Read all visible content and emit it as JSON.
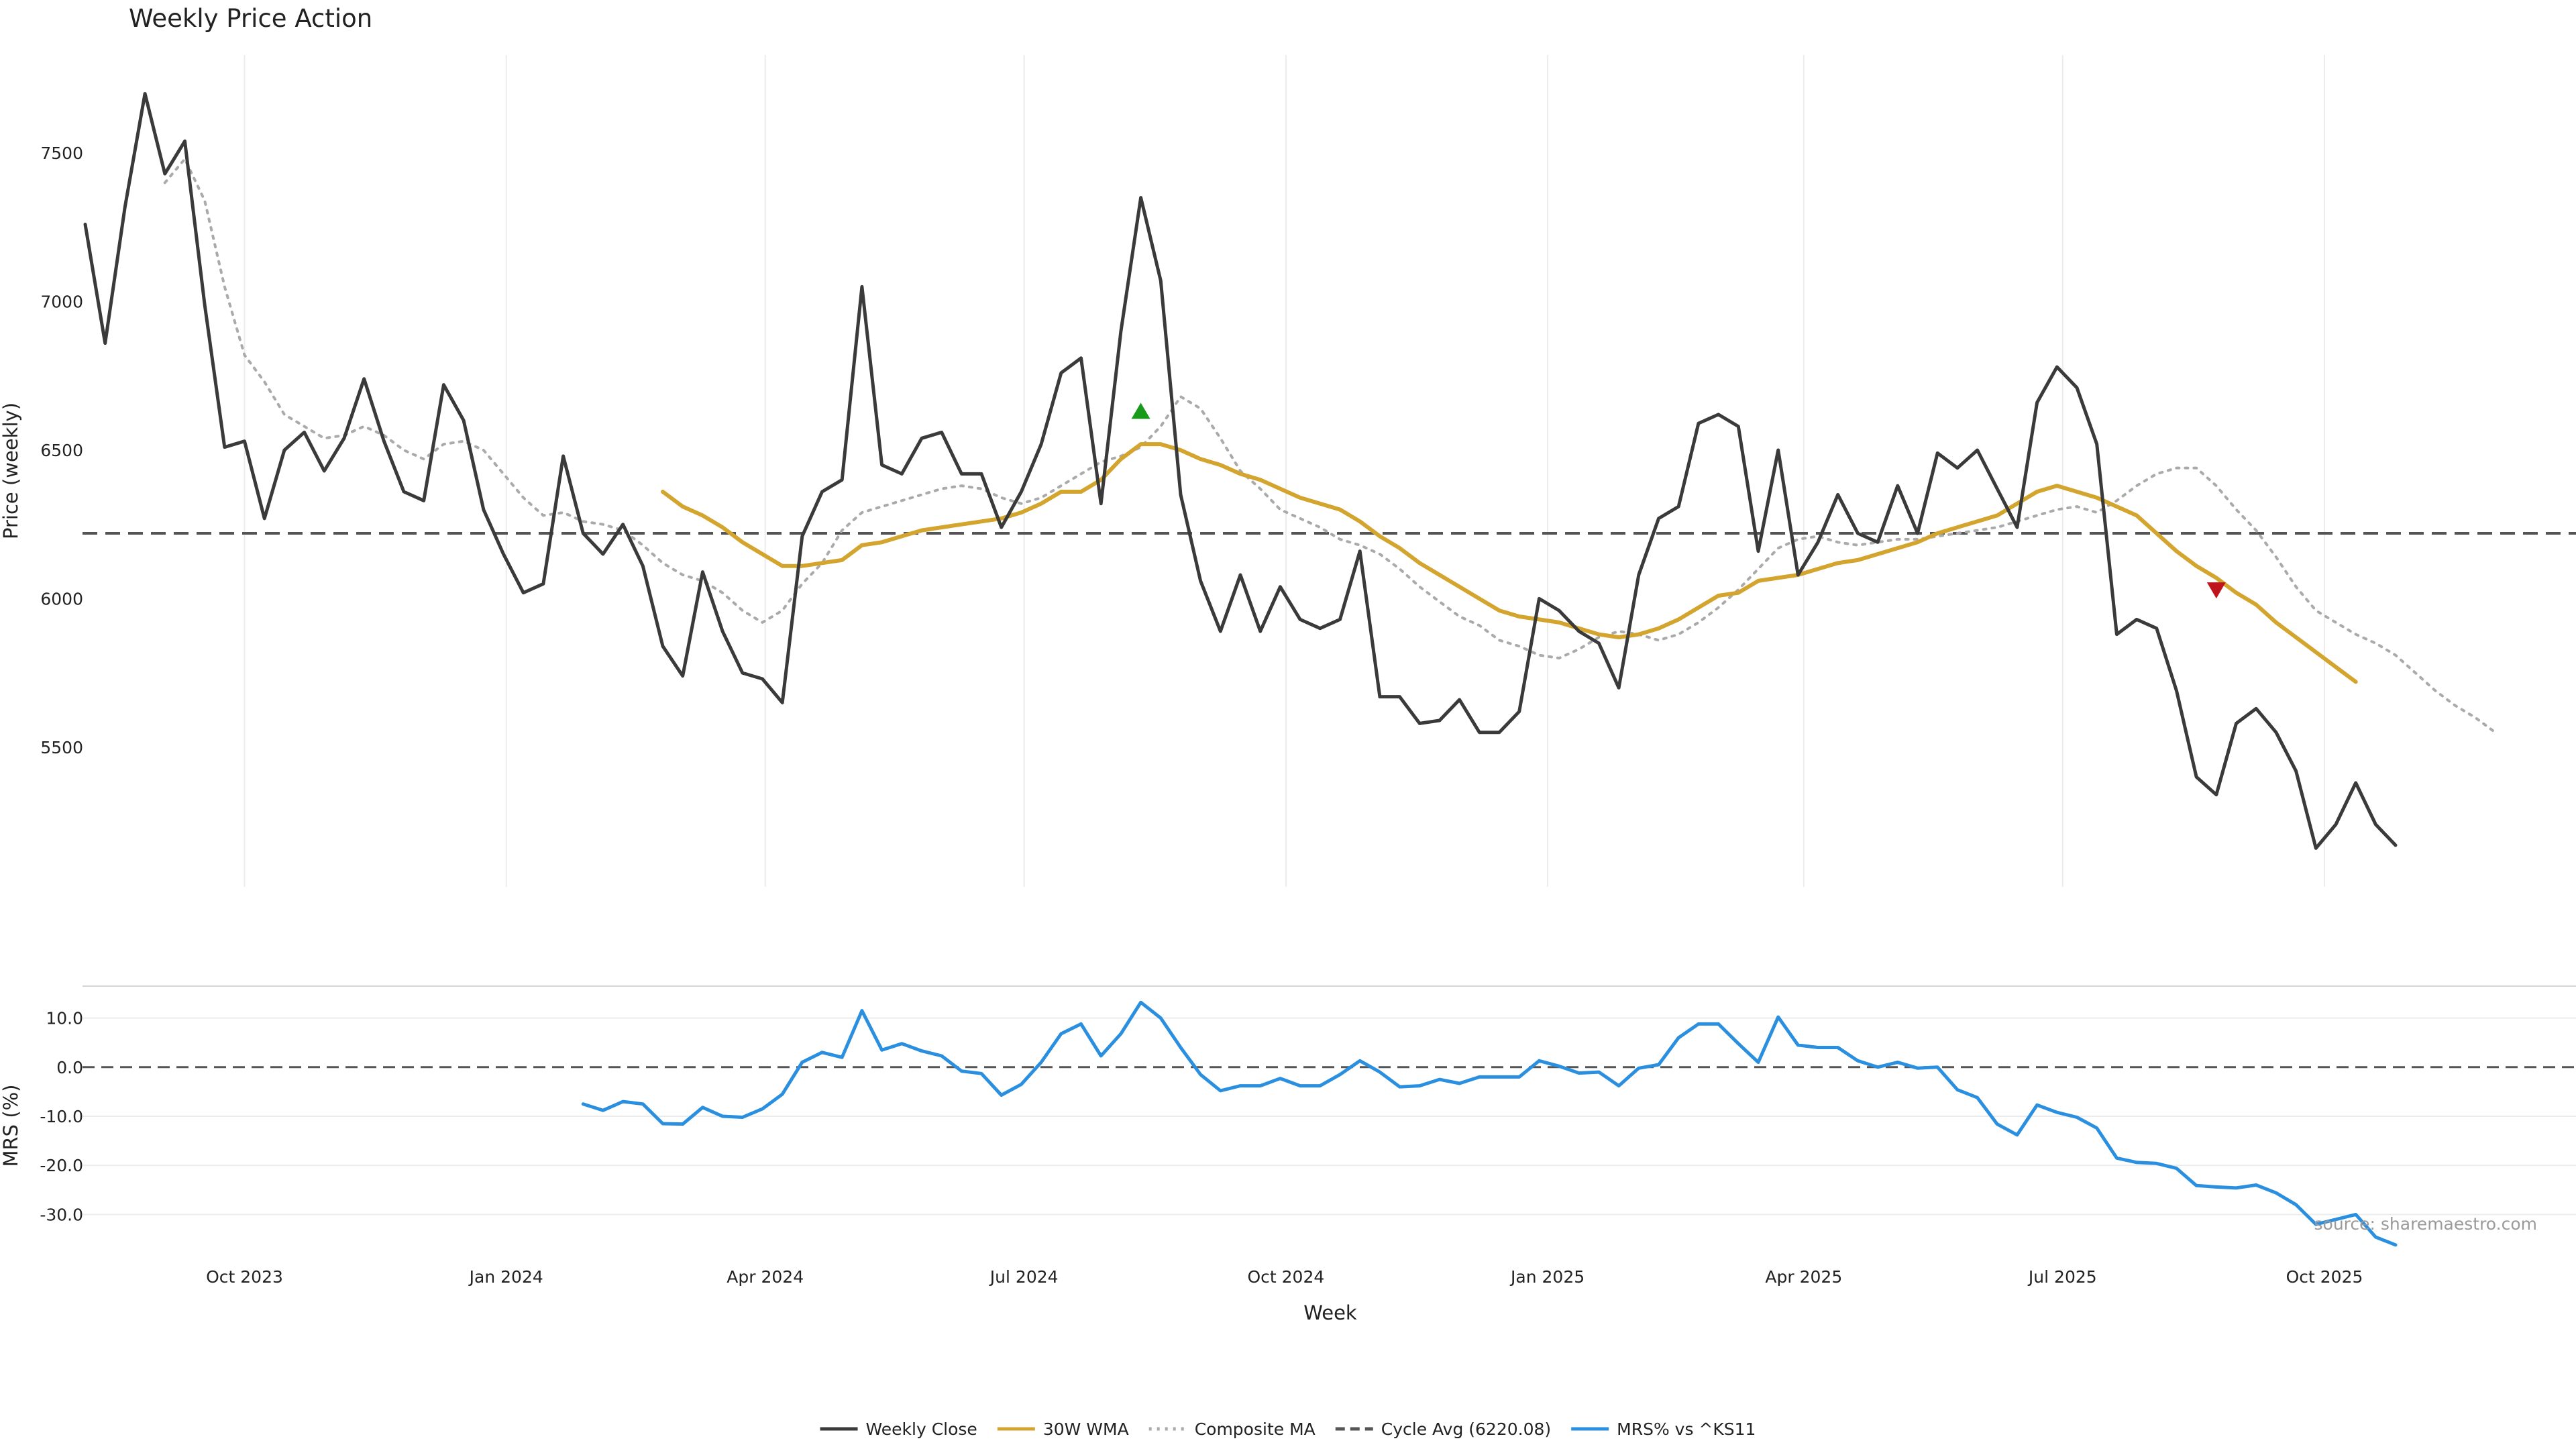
{
  "colors": {
    "close": "#3a3a3a",
    "wma": "#d4a52e",
    "composite": "#aaaaaa",
    "cycle_avg": "#555555",
    "mrs": "#2b8fe0",
    "buy_marker": "#1a9a1a",
    "sell_marker": "#c0141c",
    "grid": "#ececec"
  },
  "chart_data": [
    {
      "type": "line",
      "title": "Weekly Price Action",
      "xlabel": "",
      "ylabel": "Price (weekly)",
      "ylim": [
        5030,
        7830
      ],
      "yticks": [
        5500,
        6000,
        6500,
        7000,
        7500
      ],
      "grid": "vertical",
      "x_start": "2023-08-06",
      "x_step_days": 7,
      "series": [
        {
          "name": "Weekly Close",
          "style": "solid",
          "values": [
            7260,
            6860,
            7320,
            7700,
            7430,
            7540,
            6990,
            6510,
            6530,
            6270,
            6500,
            6560,
            6430,
            6540,
            6740,
            6530,
            6360,
            6330,
            6720,
            6600,
            6300,
            6150,
            6020,
            6050,
            6480,
            6220,
            6150,
            6250,
            6110,
            5840,
            5740,
            6090,
            5890,
            5750,
            5730,
            5650,
            6210,
            6360,
            6400,
            7050,
            6450,
            6420,
            6540,
            6560,
            6420,
            6420,
            6240,
            6360,
            6520,
            6760,
            6810,
            6320,
            6900,
            7350,
            7070,
            6350,
            6060,
            5890,
            6080,
            5890,
            6040,
            5930,
            5900,
            5930,
            6160,
            5670,
            5670,
            5580,
            5590,
            5660,
            5550,
            5550,
            5620,
            6000,
            5960,
            5890,
            5850,
            5700,
            6080,
            6270,
            6310,
            6590,
            6620,
            6580,
            6160,
            6500,
            6080,
            6190,
            6350,
            6220,
            6190,
            6380,
            6220,
            6490,
            6440,
            6500,
            6370,
            6240,
            6660,
            6780,
            6710,
            6520,
            5880,
            5930,
            5900,
            5690,
            5400,
            5340,
            5580,
            5630,
            5550,
            5420,
            5160,
            5240,
            5380,
            5240,
            5170
          ]
        },
        {
          "name": "30W WMA",
          "style": "solid",
          "start_index": 29,
          "values": [
            6360,
            6310,
            6280,
            6240,
            6190,
            6150,
            6110,
            6110,
            6120,
            6130,
            6180,
            6190,
            6210,
            6230,
            6240,
            6250,
            6260,
            6270,
            6290,
            6320,
            6360,
            6360,
            6400,
            6470,
            6520,
            6520,
            6500,
            6470,
            6450,
            6420,
            6400,
            6370,
            6340,
            6320,
            6300,
            6260,
            6210,
            6170,
            6120,
            6080,
            6040,
            6000,
            5960,
            5940,
            5930,
            5920,
            5900,
            5880,
            5870,
            5880,
            5900,
            5930,
            5970,
            6010,
            6020,
            6060,
            6070,
            6080,
            6100,
            6120,
            6130,
            6150,
            6170,
            6190,
            6220,
            6240,
            6260,
            6280,
            6320,
            6360,
            6380,
            6360,
            6340,
            6310,
            6280,
            6220,
            6160,
            6110,
            6070,
            6020,
            5980,
            5920,
            5870,
            5820,
            5770,
            5720
          ]
        },
        {
          "name": "Composite MA",
          "style": "dotted",
          "start_index": 4,
          "values": [
            7400,
            7480,
            7340,
            7050,
            6820,
            6730,
            6620,
            6580,
            6540,
            6550,
            6580,
            6550,
            6500,
            6470,
            6520,
            6530,
            6500,
            6420,
            6340,
            6280,
            6290,
            6260,
            6250,
            6230,
            6180,
            6120,
            6080,
            6060,
            6020,
            5960,
            5920,
            5960,
            6050,
            6120,
            6230,
            6290,
            6310,
            6330,
            6350,
            6370,
            6380,
            6370,
            6340,
            6320,
            6340,
            6380,
            6420,
            6460,
            6480,
            6510,
            6580,
            6680,
            6640,
            6540,
            6430,
            6370,
            6300,
            6270,
            6240,
            6200,
            6180,
            6150,
            6100,
            6040,
            5990,
            5940,
            5910,
            5860,
            5840,
            5810,
            5800,
            5830,
            5870,
            5890,
            5880,
            5860,
            5880,
            5920,
            5970,
            6030,
            6100,
            6170,
            6200,
            6210,
            6190,
            6180,
            6190,
            6200,
            6200,
            6210,
            6220,
            6230,
            6240,
            6260,
            6280,
            6300,
            6310,
            6290,
            6330,
            6380,
            6420,
            6440,
            6440,
            6380,
            6300,
            6230,
            6140,
            6040,
            5960,
            5920,
            5880,
            5850,
            5810,
            5750,
            5690,
            5640,
            5600,
            5550
          ]
        }
      ],
      "reference_line": {
        "name": "Cycle Avg (6220.08)",
        "value": 6220.08,
        "style": "dashed"
      },
      "markers": [
        {
          "index": 53,
          "value": 6630,
          "shape": "triangle-up"
        },
        {
          "index": 107,
          "value": 6030,
          "shape": "triangle-down"
        }
      ],
      "annotations": []
    },
    {
      "type": "line",
      "title": "",
      "xlabel": "Week",
      "ylabel": "MRS (%)",
      "ylim": [
        -39.5,
        16.5
      ],
      "yticks": [
        -30,
        -20,
        -10,
        0,
        10
      ],
      "ytick_labels": [
        "-30.0",
        "-20.0",
        "-10.0",
        "0.0",
        "10.0"
      ],
      "grid": "horizontal",
      "x_start": "2023-08-06",
      "x_step_days": 7,
      "xticks": [
        "2023-10-01",
        "2024-01-01",
        "2024-04-01",
        "2024-07-01",
        "2024-10-01",
        "2025-01-01",
        "2025-04-01",
        "2025-07-01",
        "2025-10-01"
      ],
      "xtick_labels": [
        "Oct 2023",
        "Jan 2024",
        "Apr 2024",
        "Jul 2024",
        "Oct 2024",
        "Jan 2025",
        "Apr 2025",
        "Jul 2025",
        "Oct 2025"
      ],
      "series": [
        {
          "name": "MRS% vs ^KS11",
          "style": "solid",
          "start_index": 25,
          "values": [
            -7.5,
            -8.8,
            -7.0,
            -7.5,
            -11.5,
            -11.6,
            -8.2,
            -10.0,
            -10.2,
            -8.5,
            -5.5,
            1.0,
            3.0,
            2.0,
            11.5,
            3.5,
            4.8,
            3.3,
            2.3,
            -0.8,
            -1.3,
            -5.7,
            -3.5,
            1.0,
            6.8,
            8.8,
            2.3,
            6.8,
            13.2,
            10.0,
            4.0,
            -1.5,
            -4.8,
            -3.8,
            -3.8,
            -2.3,
            -3.8,
            -3.8,
            -1.5,
            1.3,
            -1.0,
            -4.0,
            -3.8,
            -2.5,
            -3.3,
            -2.0,
            -2.0,
            -2.0,
            1.3,
            0.2,
            -1.2,
            -1.0,
            -3.8,
            -0.2,
            0.5,
            6.0,
            8.8,
            8.8,
            4.8,
            1.0,
            10.2,
            4.5,
            4.0,
            4.0,
            1.3,
            0.0,
            1.0,
            -0.2,
            0.0,
            -4.6,
            -6.2,
            -11.6,
            -13.8,
            -7.7,
            -9.2,
            -10.2,
            -12.4,
            -18.5,
            -19.4,
            -19.6,
            -20.6,
            -24.1,
            -24.4,
            -24.6,
            -24.0,
            -25.6,
            -28.0,
            -32.0,
            -31.0,
            -30.0,
            -34.6,
            -36.2
          ]
        }
      ],
      "reference_line": {
        "value": 0,
        "style": "dashed"
      },
      "source": "source: sharemaestro.com"
    }
  ],
  "legend": {
    "placement": "bottom-center",
    "items": [
      {
        "label": "Weekly Close",
        "style": "solid",
        "color_key": "close"
      },
      {
        "label": "30W WMA",
        "style": "solid",
        "color_key": "wma"
      },
      {
        "label": "Composite MA",
        "style": "dotted",
        "color_key": "composite"
      },
      {
        "label": "Cycle Avg (6220.08)",
        "style": "dashed",
        "color_key": "cycle_avg"
      },
      {
        "label": "MRS% vs ^KS11",
        "style": "solid",
        "color_key": "mrs"
      }
    ]
  }
}
